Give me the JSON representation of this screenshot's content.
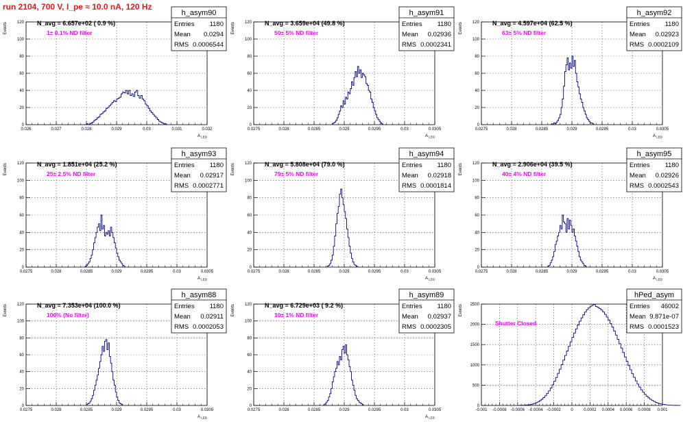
{
  "page_title": "run 2104,   700 V, I_pe ≈ 10.0 nA, 120 Hz",
  "colors": {
    "title": "#e8141c",
    "histogram": "#000080",
    "filter_label": "#ff00ff",
    "grid": "#000000"
  },
  "chart_data": [
    {
      "type": "histogram",
      "name": "h_asym90",
      "ylabel": "Events",
      "xlabel": "A_LED",
      "xlim": [
        0.026,
        0.032
      ],
      "ylim": [
        0,
        120
      ],
      "xticks": [
        "0.026",
        "0.027",
        "0.028",
        "0.029",
        "0.03",
        "0.031",
        "0.032"
      ],
      "xtick_values": [
        0.026,
        0.027,
        0.028,
        0.029,
        0.03,
        0.031,
        0.032
      ],
      "yticks": [
        "0",
        "20",
        "40",
        "60",
        "80",
        "100",
        "120"
      ],
      "grid": true,
      "stats": {
        "Entries": "1180",
        "Mean": "0.0294",
        "RMS": "0.0006544"
      },
      "n_avg_label": "N_avg = 6.657e+02 ( 0.9 %)",
      "filter_label": "1± 0.1% ND filter",
      "bins": {
        "start": 0.0279,
        "width": 5e-05,
        "counts": [
          0,
          0,
          1,
          0,
          1,
          2,
          3,
          5,
          6,
          8,
          9,
          12,
          13,
          15,
          16,
          19,
          20,
          22,
          24,
          26,
          28,
          27,
          30,
          31,
          32,
          36,
          38,
          37,
          40,
          36,
          40,
          34,
          36,
          33,
          38,
          40,
          34,
          31,
          34,
          30,
          28,
          24,
          22,
          19,
          16,
          14,
          12,
          10,
          8,
          6,
          4,
          3,
          2,
          1,
          1,
          0
        ]
      }
    },
    {
      "type": "histogram",
      "name": "h_asym91",
      "ylabel": "Events",
      "xlabel": "A_LED",
      "xlim": [
        0.0275,
        0.0305
      ],
      "ylim": [
        0,
        120
      ],
      "xticks": [
        "0.0275",
        "0.028",
        "0.0285",
        "0.029",
        "0.0295",
        "0.03",
        "0.0305"
      ],
      "xtick_values": [
        0.0275,
        0.028,
        0.0285,
        0.029,
        0.0295,
        0.03,
        0.0305
      ],
      "yticks": [
        "0",
        "20",
        "40",
        "60",
        "80",
        "100",
        "120"
      ],
      "grid": true,
      "stats": {
        "Entries": "1180",
        "Mean": "0.02936",
        "RMS": "0.0002341"
      },
      "n_avg_label": "N_avg = 3.659e+04 (49.8 %)",
      "filter_label": "50± 5% ND filter",
      "bins": {
        "start": 0.0288,
        "width": 2e-05,
        "counts": [
          1,
          2,
          3,
          5,
          8,
          12,
          16,
          22,
          20,
          28,
          24,
          32,
          30,
          38,
          36,
          42,
          50,
          46,
          55,
          62,
          56,
          68,
          60,
          64,
          55,
          60,
          58,
          56,
          48,
          46,
          40,
          38,
          30,
          26,
          20,
          16,
          12,
          8,
          6,
          4,
          2,
          1
        ]
      }
    },
    {
      "type": "histogram",
      "name": "h_asym92",
      "ylabel": "Events",
      "xlabel": "A_LED",
      "xlim": [
        0.0275,
        0.0305
      ],
      "ylim": [
        0,
        120
      ],
      "xticks": [
        "0.0275",
        "0.028",
        "0.0285",
        "0.029",
        "0.0295",
        "0.03",
        "0.0305"
      ],
      "xtick_values": [
        0.0275,
        0.028,
        0.0285,
        0.029,
        0.0295,
        0.03,
        0.0305
      ],
      "yticks": [
        "0",
        "20",
        "40",
        "60",
        "80",
        "100",
        "120"
      ],
      "grid": true,
      "stats": {
        "Entries": "1180",
        "Mean": "0.02923",
        "RMS": "0.0002109"
      },
      "n_avg_label": "N_avg = 4.597e+04 (62.5 %)",
      "filter_label": "63± 5% ND filter",
      "bins": {
        "start": 0.02866,
        "width": 2e-05,
        "counts": [
          1,
          0,
          2,
          1,
          3,
          5,
          8,
          12,
          20,
          30,
          45,
          62,
          70,
          78,
          64,
          72,
          66,
          80,
          68,
          75,
          60,
          50,
          44,
          36,
          30,
          26,
          20,
          16,
          12,
          8,
          6,
          4,
          2,
          2,
          1
        ]
      }
    },
    {
      "type": "histogram",
      "name": "h_asym93",
      "ylabel": "Events",
      "xlabel": "A_LED",
      "xlim": [
        0.0275,
        0.0305
      ],
      "ylim": [
        0,
        120
      ],
      "xticks": [
        "0.0275",
        "0.028",
        "0.0285",
        "0.029",
        "0.0295",
        "0.03",
        "0.0305"
      ],
      "xtick_values": [
        0.0275,
        0.028,
        0.0285,
        0.029,
        0.0295,
        0.03,
        0.0305
      ],
      "yticks": [
        "0",
        "20",
        "40",
        "60",
        "80",
        "100",
        "120"
      ],
      "grid": true,
      "stats": {
        "Entries": "1180",
        "Mean": "0.02917",
        "RMS": "0.0002771"
      },
      "n_avg_label": "N_avg = 1.851e+04 (25.2 %)",
      "filter_label": "25± 2.5% ND filter",
      "bins": {
        "start": 0.02848,
        "width": 2e-05,
        "counts": [
          1,
          2,
          4,
          6,
          10,
          14,
          20,
          28,
          34,
          40,
          46,
          50,
          42,
          60,
          44,
          48,
          36,
          40,
          38,
          42,
          36,
          46,
          40,
          34,
          28,
          22,
          16,
          12,
          8,
          6,
          4,
          2,
          1
        ]
      }
    },
    {
      "type": "histogram",
      "name": "h_asym94",
      "ylabel": "Events",
      "xlabel": "A_LED",
      "xlim": [
        0.0275,
        0.0305
      ],
      "ylim": [
        0,
        120
      ],
      "xticks": [
        "0.0275",
        "0.028",
        "0.0285",
        "0.029",
        "0.0295",
        "0.03",
        "0.0305"
      ],
      "xtick_values": [
        0.0275,
        0.028,
        0.0285,
        0.029,
        0.0295,
        0.03,
        0.0305
      ],
      "yticks": [
        "0",
        "20",
        "40",
        "60",
        "80",
        "100",
        "120"
      ],
      "grid": true,
      "stats": {
        "Entries": "1180",
        "Mean": "0.02918",
        "RMS": "0.0001814"
      },
      "n_avg_label": "N_avg = 5.808e+04 (79.0 %)",
      "filter_label": "79± 5% ND filter",
      "bins": {
        "start": 0.02872,
        "width": 2e-05,
        "counts": [
          1,
          2,
          4,
          8,
          14,
          24,
          36,
          50,
          62,
          70,
          84,
          90,
          80,
          72,
          64,
          56,
          44,
          34,
          24,
          16,
          10,
          6,
          3,
          2,
          1
        ]
      }
    },
    {
      "type": "histogram",
      "name": "h_asym95",
      "ylabel": "Events",
      "xlabel": "A_LED",
      "xlim": [
        0.0275,
        0.0305
      ],
      "ylim": [
        0,
        120
      ],
      "xticks": [
        "0.0275",
        "0.028",
        "0.0285",
        "0.029",
        "0.0295",
        "0.03",
        "0.0305"
      ],
      "xtick_values": [
        0.0275,
        0.028,
        0.0285,
        0.029,
        0.0295,
        0.03,
        0.0305
      ],
      "yticks": [
        "0",
        "20",
        "40",
        "60",
        "80",
        "100",
        "120"
      ],
      "grid": true,
      "stats": {
        "Entries": "1180",
        "Mean": "0.02926",
        "RMS": "0.0002543"
      },
      "n_avg_label": "N_avg = 2.906e+04 (39.5 %)",
      "filter_label": "40± 4% ND filter",
      "bins": {
        "start": 0.0286,
        "width": 2e-05,
        "counts": [
          1,
          2,
          5,
          8,
          12,
          18,
          26,
          30,
          36,
          40,
          48,
          44,
          60,
          52,
          50,
          40,
          56,
          44,
          54,
          48,
          40,
          44,
          36,
          30,
          24,
          18,
          12,
          8,
          6,
          4,
          2,
          1
        ]
      }
    },
    {
      "type": "histogram",
      "name": "h_asym88",
      "ylabel": "Events",
      "xlabel": "A_LED",
      "xlim": [
        0.0275,
        0.0305
      ],
      "ylim": [
        0,
        120
      ],
      "xticks": [
        "0.0275",
        "0.028",
        "0.0285",
        "0.029",
        "0.0295",
        "0.03",
        "0.0305"
      ],
      "xtick_values": [
        0.0275,
        0.028,
        0.0285,
        0.029,
        0.0295,
        0.03,
        0.0305
      ],
      "yticks": [
        "0",
        "20",
        "40",
        "60",
        "80",
        "100",
        "120"
      ],
      "grid": true,
      "stats": {
        "Entries": "1180",
        "Mean": "0.02911",
        "RMS": "0.0002053"
      },
      "n_avg_label": "N_avg = 7.353e+04 (100.0 %)",
      "filter_label": "100% (No filter)",
      "bins": {
        "start": 0.0285,
        "width": 2e-05,
        "counts": [
          1,
          2,
          3,
          5,
          8,
          12,
          18,
          24,
          30,
          36,
          44,
          52,
          60,
          70,
          64,
          76,
          78,
          66,
          74,
          58,
          50,
          40,
          30,
          24,
          16,
          10,
          6,
          3,
          2,
          1
        ]
      }
    },
    {
      "type": "histogram",
      "name": "h_asym89",
      "ylabel": "Events",
      "xlabel": "A_LED",
      "xlim": [
        0.0275,
        0.0305
      ],
      "ylim": [
        0,
        120
      ],
      "xticks": [
        "0.0275",
        "0.028",
        "0.0285",
        "0.029",
        "0.0295",
        "0.03",
        "0.0305"
      ],
      "xtick_values": [
        0.0275,
        0.028,
        0.0285,
        0.029,
        0.0295,
        0.03,
        0.0305
      ],
      "yticks": [
        "0",
        "20",
        "40",
        "60",
        "80",
        "100",
        "120"
      ],
      "grid": true,
      "stats": {
        "Entries": "1180",
        "Mean": "0.02937",
        "RMS": "0.0002305"
      },
      "n_avg_label": "N_avg = 6.729e+03 ( 9.2 %)",
      "filter_label": "10± 1% ND filter",
      "bins": {
        "start": 0.02866,
        "width": 2e-05,
        "counts": [
          1,
          2,
          4,
          6,
          10,
          14,
          20,
          28,
          34,
          40,
          44,
          52,
          48,
          58,
          54,
          66,
          70,
          62,
          72,
          60,
          54,
          46,
          40,
          30,
          24,
          18,
          12,
          8,
          6,
          4,
          3,
          2,
          1
        ]
      }
    },
    {
      "type": "histogram",
      "name": "hPed_asym",
      "ylabel": "Events",
      "xlabel": "",
      "xlim": [
        -0.001,
        0.001
      ],
      "ylim": [
        0,
        2500
      ],
      "xticks": [
        "-0.001",
        "-0.0008",
        "-0.0006",
        "-0.0004",
        "-0.0002",
        "0",
        "0.0002",
        "0.0004",
        "0.0006",
        "0.0008",
        "0.001"
      ],
      "xtick_values": [
        -0.001,
        -0.0008,
        -0.0006,
        -0.0004,
        -0.0002,
        0,
        0.0002,
        0.0004,
        0.0006,
        0.0008,
        0.001
      ],
      "yticks": [
        "0",
        "500",
        "1000",
        "1500",
        "2000",
        "2500"
      ],
      "grid": true,
      "stats": {
        "Entries": "46002",
        "Mean": "9.871e-07",
        "RMS": "0.0001523"
      },
      "n_avg_label": "",
      "filter_label": "Shutter Closed",
      "bins": {
        "start": -0.0006,
        "width": 2e-05,
        "counts": [
          1,
          2,
          3,
          5,
          8,
          12,
          18,
          26,
          36,
          50,
          68,
          90,
          118,
          152,
          192,
          240,
          296,
          358,
          430,
          510,
          596,
          690,
          790,
          895,
          1005,
          1118,
          1232,
          1345,
          1458,
          1570,
          1680,
          1786,
          1888,
          1985,
          2076,
          2160,
          2236,
          2303,
          2361,
          2409,
          2447,
          2474,
          2490,
          2440,
          2420,
          2392,
          2353,
          2305,
          2247,
          2180,
          2105,
          2022,
          1933,
          1837,
          1736,
          1632,
          1525,
          1416,
          1306,
          1197,
          1089,
          984,
          882,
          785,
          693,
          607,
          527,
          454,
          388,
          329,
          276,
          229,
          188,
          153,
          123,
          98,
          77,
          60,
          46,
          35,
          26,
          19,
          14,
          10,
          7,
          5,
          3,
          2,
          1,
          1
        ]
      }
    }
  ]
}
